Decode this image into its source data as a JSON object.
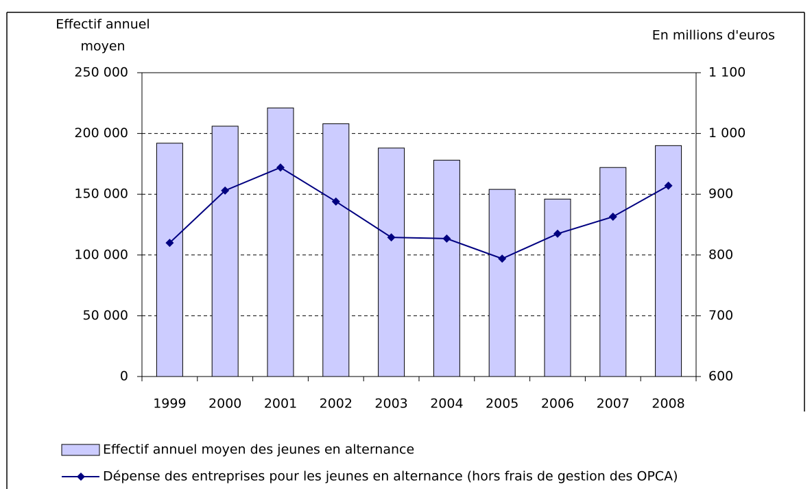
{
  "chart_data": {
    "type": "bar",
    "ylabel": [
      "Effectif annuel",
      "moyen"
    ],
    "y2label": "En millions d'euros",
    "categories": [
      "1999",
      "2000",
      "2001",
      "2002",
      "2003",
      "2004",
      "2005",
      "2006",
      "2007",
      "2008"
    ],
    "series": [
      {
        "name": "Effectif annuel moyen des jeunes en alternance",
        "type": "bar",
        "color": "#ccccff",
        "values": [
          192000,
          206000,
          221000,
          208000,
          188000,
          178000,
          154000,
          146000,
          172000,
          190000
        ]
      },
      {
        "name": "Dépense des entreprises pour les jeunes en alternance (hors frais de gestion des OPCA)",
        "type": "line",
        "axis": "y2",
        "color": "#000080",
        "values": [
          820,
          906,
          944,
          888,
          829,
          827,
          794,
          835,
          863,
          914
        ]
      }
    ],
    "ylim": [
      0,
      250000
    ],
    "yticks": [
      0,
      {
        "value": 50000,
        "label": "50 000"
      },
      {
        "value": 100000,
        "label": "100 000"
      },
      {
        "value": 150000,
        "label": "150 000"
      },
      {
        "value": 200000,
        "label": "200 000"
      },
      {
        "value": 250000,
        "label": "250 000"
      }
    ],
    "y2lim": [
      600,
      1100
    ],
    "y2ticks": [
      600,
      700,
      800,
      900,
      {
        "value": 1000,
        "label": "1 000"
      },
      {
        "value": 1100,
        "label": "1 100"
      }
    ],
    "grid": true,
    "legend": "bottom"
  }
}
